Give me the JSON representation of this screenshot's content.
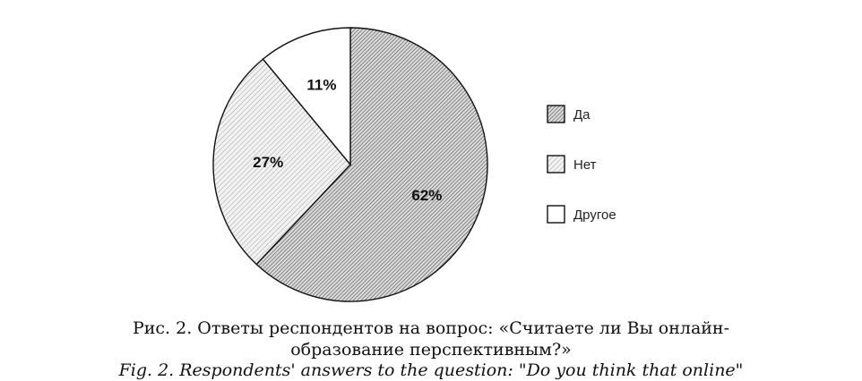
{
  "chart_data": {
    "type": "pie",
    "slices": [
      {
        "name": "Да",
        "value": 62,
        "label": "62%",
        "pattern": "dense-hatch"
      },
      {
        "name": "Нет",
        "value": 27,
        "label": "27%",
        "pattern": "light-hatch"
      },
      {
        "name": "Другое",
        "value": 11,
        "label": "11%",
        "pattern": "none"
      }
    ],
    "legend_position": "right",
    "start_angle": "12 o'clock",
    "direction": "clockwise"
  },
  "caption": {
    "line1": "Рис. 2. Ответы респондентов на вопрос: «Считаете ли Вы онлайн-",
    "line2": "образование перспективным?»",
    "line3": "Fig. 2. Respondents' answers to the question: \"Do you think that online\""
  },
  "colors": {
    "stroke": "#111111",
    "dense_hatch": "#555555",
    "light_hatch": "#9a9a9a",
    "background": "#ffffff"
  }
}
